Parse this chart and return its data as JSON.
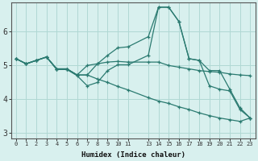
{
  "xlabel": "Humidex (Indice chaleur)",
  "background_color": "#d8f0ee",
  "grid_color": "#b0d8d4",
  "line_color": "#2a7a70",
  "ylim": [
    2.85,
    6.85
  ],
  "xlim": [
    -0.5,
    23.5
  ],
  "yticks": [
    3,
    4,
    5,
    6
  ],
  "x_positions": [
    0,
    1,
    2,
    3,
    4,
    5,
    6,
    7,
    8,
    9,
    10,
    11,
    13,
    14,
    15,
    16,
    17,
    18,
    19,
    20,
    21,
    22,
    23
  ],
  "x_tick_labels": [
    "0",
    "1",
    "2",
    "3",
    "4",
    "5",
    "6",
    "7",
    "8",
    "9",
    "10",
    "11",
    "13",
    "14",
    "15",
    "16",
    "17",
    "18",
    "19",
    "20",
    "21",
    "22",
    "23"
  ],
  "lines": [
    {
      "x": [
        0,
        1,
        2,
        3,
        4,
        5,
        6,
        7,
        8,
        9,
        10,
        11,
        13,
        14,
        15,
        16,
        17,
        18,
        19,
        20,
        21,
        22,
        23
      ],
      "y": [
        5.2,
        5.05,
        5.15,
        5.25,
        4.9,
        4.9,
        4.72,
        4.72,
        5.05,
        5.3,
        5.52,
        5.55,
        5.85,
        6.72,
        6.72,
        6.3,
        5.2,
        5.15,
        4.85,
        4.85,
        4.3,
        3.75,
        3.45
      ]
    },
    {
      "x": [
        0,
        1,
        2,
        3,
        4,
        5,
        6,
        7,
        8,
        9,
        10,
        11,
        13,
        14,
        15,
        16,
        17,
        18,
        19,
        20,
        21,
        22,
        23
      ],
      "y": [
        5.2,
        5.05,
        5.15,
        5.25,
        4.88,
        4.88,
        4.7,
        4.4,
        4.5,
        4.85,
        5.02,
        5.02,
        5.3,
        6.72,
        6.72,
        6.3,
        5.2,
        5.15,
        4.4,
        4.3,
        4.25,
        3.7,
        3.45
      ]
    },
    {
      "x": [
        0,
        1,
        2,
        3,
        4,
        5,
        6,
        7,
        8,
        9,
        10,
        11,
        13,
        14,
        15,
        16,
        17,
        18,
        19,
        20,
        21,
        22,
        23
      ],
      "y": [
        5.2,
        5.05,
        5.15,
        5.25,
        4.9,
        4.9,
        4.72,
        5.0,
        5.05,
        5.1,
        5.12,
        5.1,
        5.1,
        5.1,
        5.0,
        4.95,
        4.9,
        4.85,
        4.82,
        4.8,
        4.75,
        4.72,
        4.7
      ]
    },
    {
      "x": [
        0,
        1,
        2,
        3,
        4,
        5,
        6,
        7,
        8,
        9,
        10,
        11,
        13,
        14,
        15,
        16,
        17,
        18,
        19,
        20,
        21,
        22,
        23
      ],
      "y": [
        5.2,
        5.05,
        5.15,
        5.25,
        4.9,
        4.9,
        4.72,
        4.72,
        4.6,
        4.5,
        4.38,
        4.28,
        4.05,
        3.95,
        3.88,
        3.78,
        3.7,
        3.6,
        3.52,
        3.45,
        3.4,
        3.35,
        3.45
      ]
    }
  ]
}
